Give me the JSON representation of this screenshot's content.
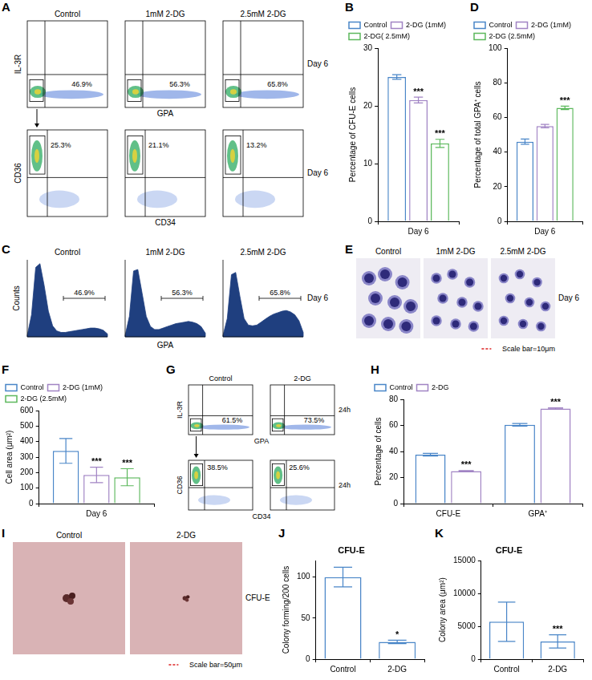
{
  "chart_data": [
    {
      "panel": "B",
      "type": "bar",
      "y_label": "Percentage of CFU-E cells",
      "categories": [
        "Day 6"
      ],
      "ylim": [
        0,
        30
      ],
      "yticks": [
        0,
        10,
        20,
        30
      ],
      "grid": false,
      "legend": "top",
      "series": [
        {
          "name": "Control",
          "color": "#4a86c8",
          "values": [
            25
          ],
          "errors": [
            0.4
          ]
        },
        {
          "name": "2-DG (1mM)",
          "color": "#a184c4",
          "values": [
            21
          ],
          "errors": [
            0.5
          ],
          "significance": [
            "***"
          ]
        },
        {
          "name": "2-DG( 2.5mM)",
          "color": "#5cb85c",
          "values": [
            13.5
          ],
          "errors": [
            0.7
          ],
          "significance": [
            "***"
          ]
        }
      ]
    },
    {
      "panel": "D",
      "type": "bar",
      "y_label": "Percentage of total GPA⁺ cells",
      "categories": [
        "Day 6"
      ],
      "ylim": [
        0,
        100
      ],
      "yticks": [
        0,
        20,
        40,
        60,
        80,
        100
      ],
      "grid": false,
      "legend": "top",
      "series": [
        {
          "name": "Control",
          "color": "#4a86c8",
          "values": [
            46
          ],
          "errors": [
            1.5
          ]
        },
        {
          "name": "2-DG (1mM)",
          "color": "#a184c4",
          "values": [
            55
          ],
          "errors": [
            1
          ]
        },
        {
          "name": "2-DG (2.5mM)",
          "color": "#5cb85c",
          "values": [
            65.5
          ],
          "errors": [
            1
          ],
          "significance": [
            "***"
          ]
        }
      ]
    },
    {
      "panel": "F",
      "type": "bar",
      "y_label": "Cell area (μm²)",
      "categories": [
        "Day 6"
      ],
      "ylim": [
        0,
        600
      ],
      "yticks": [
        0,
        100,
        200,
        300,
        400,
        500,
        600
      ],
      "grid": false,
      "legend": "top",
      "series": [
        {
          "name": "Control",
          "color": "#4a86c8",
          "values": [
            340
          ],
          "errors": [
            80
          ]
        },
        {
          "name": "2-DG (1mM)",
          "color": "#a184c4",
          "values": [
            185
          ],
          "errors": [
            50
          ],
          "significance": [
            "***"
          ]
        },
        {
          "name": "2-DG (2.5mM)",
          "color": "#5cb85c",
          "values": [
            170
          ],
          "errors": [
            55
          ],
          "significance": [
            "***"
          ]
        }
      ]
    },
    {
      "panel": "H",
      "type": "bar",
      "y_label": "Percentage of cells",
      "categories": [
        "CFU-E",
        "GPA⁺"
      ],
      "ylim": [
        0,
        80
      ],
      "yticks": [
        0,
        20,
        40,
        60,
        80
      ],
      "grid": false,
      "legend": "top",
      "series": [
        {
          "name": "Control",
          "color": "#4a86c8",
          "values": [
            37.5,
            60.5
          ],
          "errors": [
            1,
            1
          ]
        },
        {
          "name": "2-DG",
          "color": "#a184c4",
          "values": [
            25,
            73
          ],
          "errors": [
            0.3,
            0.5
          ],
          "significance": [
            "***",
            "***"
          ]
        }
      ]
    },
    {
      "panel": "J",
      "type": "bar",
      "title": "CFU-E",
      "y_label": "Colony forming/200 cells",
      "categories": [
        "Control",
        "2-DG"
      ],
      "ylim": [
        0,
        120
      ],
      "yticks": [
        0,
        50,
        100
      ],
      "grid": false,
      "color": "#4a86c8",
      "values": [
        100,
        21
      ],
      "errors": [
        12,
        2
      ],
      "significance": [
        null,
        "*"
      ]
    },
    {
      "panel": "K",
      "type": "bar",
      "title": "CFU-E",
      "y_label": "Colony area (μm²)",
      "categories": [
        "Control",
        "2-DG"
      ],
      "ylim": [
        0,
        15000
      ],
      "yticks": [
        0,
        5000,
        10000,
        15000
      ],
      "grid": false,
      "color": "#4a86c8",
      "values": [
        5700,
        2700
      ],
      "errors": [
        3000,
        1000
      ],
      "significance": [
        null,
        "***"
      ]
    }
  ],
  "flow_panels": [
    {
      "panel": "A",
      "time": "Day 6",
      "rows": [
        {
          "x_label": "GPA",
          "y_label": "IL-3R",
          "titles": [
            "Control",
            "1mM 2-DG",
            "2.5mM 2-DG"
          ],
          "percentages": [
            "46.9%",
            "56.3%",
            "65.8%"
          ]
        },
        {
          "x_label": "CD34",
          "y_label": "CD36",
          "percentages": [
            "25.3%",
            "21.1%",
            "13.2%"
          ]
        }
      ]
    },
    {
      "panel": "G",
      "time": "24h",
      "rows": [
        {
          "x_label": "GPA",
          "y_label": "IL-3R",
          "titles": [
            "Control",
            "2-DG"
          ],
          "percentages": [
            "61.5%",
            "73.5%"
          ]
        },
        {
          "x_label": "CD34",
          "y_label": "CD36",
          "percentages": [
            "38.5%",
            "25.6%"
          ]
        }
      ]
    }
  ],
  "histogram_panel": {
    "panel": "C",
    "time": "Day 6",
    "x_label": "GPA",
    "y_label": "Counts",
    "titles": [
      "Control",
      "1mM 2-DG",
      "2.5mM 2-DG"
    ],
    "percentages": [
      "46.9%",
      "56.3%",
      "65.8%"
    ],
    "curves": [
      [
        2,
        30,
        95,
        100,
        70,
        35,
        15,
        8,
        6,
        6,
        7,
        8,
        9,
        10,
        11,
        12,
        12,
        11,
        9,
        4
      ],
      [
        2,
        28,
        90,
        92,
        60,
        28,
        14,
        10,
        10,
        12,
        14,
        16,
        18,
        19,
        20,
        21,
        20,
        18,
        14,
        5
      ],
      [
        2,
        25,
        85,
        88,
        55,
        25,
        16,
        15,
        16,
        20,
        24,
        28,
        31,
        33,
        35,
        36,
        34,
        30,
        22,
        6
      ]
    ]
  },
  "image_panels": [
    {
      "panel": "E",
      "titles": [
        "Control",
        "1mM 2-DG",
        "2.5mM 2-DG"
      ],
      "side_label": "Day 6",
      "scale_bar": "Scale bar=10μm"
    },
    {
      "panel": "I",
      "titles": [
        "Control",
        "2-DG"
      ],
      "side_label": "CFU-E",
      "scale_bar": "Scale bar=50μm"
    }
  ]
}
